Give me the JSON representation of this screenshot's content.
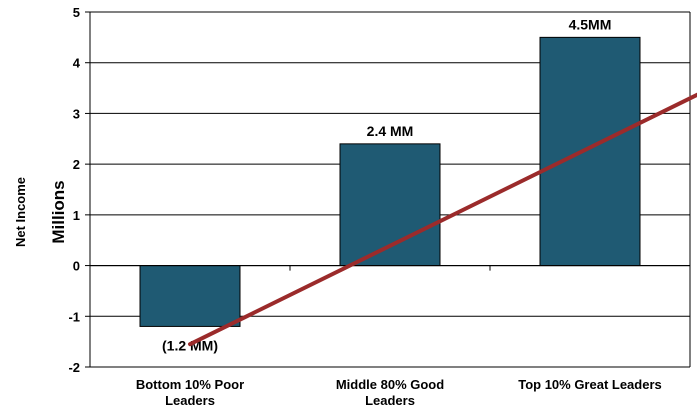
{
  "chart_data": {
    "type": "bar",
    "categories": [
      [
        "Bottom 10%  Poor",
        "Leaders"
      ],
      [
        "Middle 80% Good",
        "Leaders"
      ],
      [
        "Top 10% Great Leaders"
      ]
    ],
    "values": [
      -1.2,
      2.4,
      4.5
    ],
    "data_labels": [
      "(1.2 MM)",
      "2.4 MM",
      "4.5MM"
    ],
    "ylabel": "Net Income",
    "yunit_label": "Millions",
    "ylim": [
      -2,
      5
    ],
    "yticks": [
      -2,
      -1,
      0,
      1,
      2,
      3,
      4,
      5
    ],
    "ytick_labels": [
      "-2",
      "-1",
      "0",
      "1",
      "2",
      "3",
      "4",
      "5"
    ],
    "grid": true,
    "trend_arrow": {
      "from": [
        0.0,
        -1.55
      ],
      "to": [
        3.3,
        4.85
      ]
    },
    "colors": {
      "bar": "#1f5a73",
      "bar_edge": "#000000",
      "arrow": "#9b2b2b",
      "grid": "#000000"
    }
  }
}
